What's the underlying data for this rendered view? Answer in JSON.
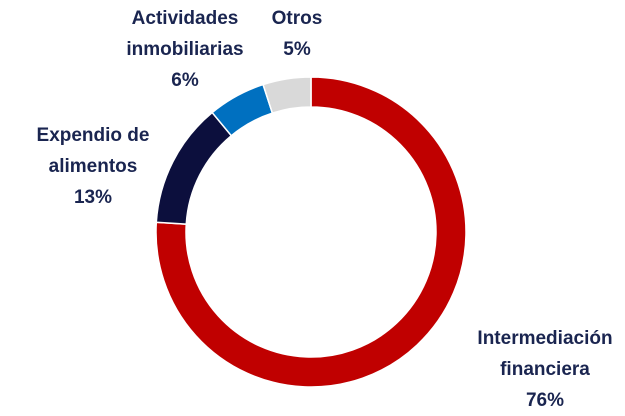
{
  "chart_data": {
    "type": "donut",
    "categories": [
      "Intermediación financiera",
      "Expendio de alimentos",
      "Actividades inmobiliarias",
      "Otros"
    ],
    "values": [
      76,
      13,
      6,
      5
    ],
    "value_labels": [
      "76%",
      "13%",
      "6%",
      "5%"
    ],
    "colors": [
      "#c00000",
      "#0c0f3d",
      "#0070c0",
      "#d9d9d9"
    ]
  }
}
